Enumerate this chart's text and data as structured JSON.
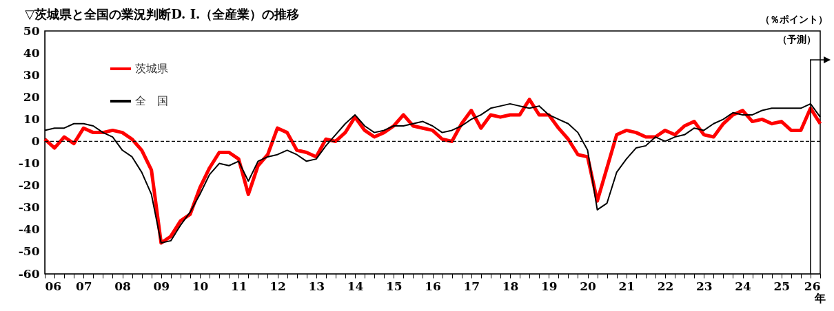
{
  "chart_data": {
    "type": "line",
    "title": "▽茨城県と全国の業況判断D. I.（全産業）の推移",
    "ylabel": "（％ポイント）",
    "x": [
      2006,
      2006.25,
      2006.5,
      2006.75,
      2007,
      2007.25,
      2007.5,
      2007.75,
      2008,
      2008.25,
      2008.5,
      2008.75,
      2009,
      2009.25,
      2009.5,
      2009.75,
      2010,
      2010.25,
      2010.5,
      2010.75,
      2011,
      2011.25,
      2011.5,
      2011.75,
      2012,
      2012.25,
      2012.5,
      2012.75,
      2013,
      2013.25,
      2013.5,
      2013.75,
      2014,
      2014.25,
      2014.5,
      2014.75,
      2015,
      2015.25,
      2015.5,
      2015.75,
      2016,
      2016.25,
      2016.5,
      2016.75,
      2017,
      2017.25,
      2017.5,
      2017.75,
      2018,
      2018.25,
      2018.5,
      2018.75,
      2019,
      2019.25,
      2019.5,
      2019.75,
      2020,
      2020.25,
      2020.5,
      2020.75,
      2021,
      2021.25,
      2021.5,
      2021.75,
      2022,
      2022.25,
      2022.5,
      2022.75,
      2023,
      2023.25,
      2023.5,
      2023.75,
      2024,
      2024.25,
      2024.5,
      2024.75,
      2025,
      2025.25,
      2025.5,
      2025.75,
      2026
    ],
    "series": [
      {
        "name": "茨城県",
        "color": "#ff0000",
        "values": [
          1,
          -3,
          2,
          -1,
          6,
          4,
          4,
          5,
          4,
          1,
          -4,
          -13,
          -46,
          -43,
          -36,
          -33,
          -21,
          -12,
          -5,
          -5,
          -8,
          -24,
          -11,
          -6,
          6,
          4,
          -4,
          -5,
          -7,
          1,
          0,
          4,
          11,
          5,
          2,
          4,
          7,
          12,
          7,
          6,
          5,
          1,
          0,
          8,
          14,
          6,
          12,
          11,
          12,
          12,
          19,
          12,
          12,
          6,
          1,
          -6,
          -7,
          -27,
          -12,
          3,
          5,
          4,
          2,
          2,
          5,
          3,
          7,
          9,
          3,
          2,
          8,
          12,
          14,
          9,
          10,
          8,
          9,
          5,
          5,
          15,
          8
        ]
      },
      {
        "name": "全　国",
        "color": "#000000",
        "values": [
          5,
          6,
          6,
          8,
          8,
          7,
          4,
          2,
          -4,
          -7,
          -14,
          -24,
          -46,
          -45,
          -38,
          -32,
          -24,
          -15,
          -10,
          -11,
          -9,
          -18,
          -9,
          -7,
          -6,
          -4,
          -6,
          -9,
          -8,
          -2,
          3,
          8,
          12,
          7,
          4,
          5,
          7,
          7,
          8,
          9,
          7,
          4,
          5,
          7,
          10,
          12,
          15,
          16,
          17,
          16,
          15,
          16,
          12,
          10,
          8,
          4,
          -4,
          -31,
          -28,
          -14,
          -8,
          -3,
          -2,
          2,
          0,
          2,
          3,
          6,
          5,
          8,
          10,
          13,
          12,
          12,
          14,
          15,
          15,
          15,
          15,
          17,
          11
        ]
      }
    ],
    "xlim": [
      2006,
      2026
    ],
    "xticks": [
      {
        "value": 2006,
        "label": "06"
      },
      {
        "value": 2006.25,
        "label": null
      },
      {
        "value": 2006.5,
        "label": null
      },
      {
        "value": 2006.75,
        "label": null
      },
      {
        "value": 2007,
        "label": "07"
      },
      {
        "value": 2007.25,
        "label": null
      },
      {
        "value": 2007.5,
        "label": null
      },
      {
        "value": 2007.75,
        "label": null
      },
      {
        "value": 2008,
        "label": "08"
      },
      {
        "value": 2008.25,
        "label": null
      },
      {
        "value": 2008.5,
        "label": null
      },
      {
        "value": 2008.75,
        "label": null
      },
      {
        "value": 2009,
        "label": "09"
      },
      {
        "value": 2009.25,
        "label": null
      },
      {
        "value": 2009.5,
        "label": null
      },
      {
        "value": 2009.75,
        "label": null
      },
      {
        "value": 2010,
        "label": "10"
      },
      {
        "value": 2010.25,
        "label": null
      },
      {
        "value": 2010.5,
        "label": null
      },
      {
        "value": 2010.75,
        "label": null
      },
      {
        "value": 2011,
        "label": "11"
      },
      {
        "value": 2011.25,
        "label": null
      },
      {
        "value": 2011.5,
        "label": null
      },
      {
        "value": 2011.75,
        "label": null
      },
      {
        "value": 2012,
        "label": "12"
      },
      {
        "value": 2012.25,
        "label": null
      },
      {
        "value": 2012.5,
        "label": null
      },
      {
        "value": 2012.75,
        "label": null
      },
      {
        "value": 2013,
        "label": "13"
      },
      {
        "value": 2013.25,
        "label": null
      },
      {
        "value": 2013.5,
        "label": null
      },
      {
        "value": 2013.75,
        "label": null
      },
      {
        "value": 2014,
        "label": "14"
      },
      {
        "value": 2014.25,
        "label": null
      },
      {
        "value": 2014.5,
        "label": null
      },
      {
        "value": 2014.75,
        "label": null
      },
      {
        "value": 2015,
        "label": "15"
      },
      {
        "value": 2015.25,
        "label": null
      },
      {
        "value": 2015.5,
        "label": null
      },
      {
        "value": 2015.75,
        "label": null
      },
      {
        "value": 2016,
        "label": "16"
      },
      {
        "value": 2016.25,
        "label": null
      },
      {
        "value": 2016.5,
        "label": null
      },
      {
        "value": 2016.75,
        "label": null
      },
      {
        "value": 2017,
        "label": "17"
      },
      {
        "value": 2017.25,
        "label": null
      },
      {
        "value": 2017.5,
        "label": null
      },
      {
        "value": 2017.75,
        "label": null
      },
      {
        "value": 2018,
        "label": "18"
      },
      {
        "value": 2018.25,
        "label": null
      },
      {
        "value": 2018.5,
        "label": null
      },
      {
        "value": 2018.75,
        "label": null
      },
      {
        "value": 2019,
        "label": "19"
      },
      {
        "value": 2019.25,
        "label": null
      },
      {
        "value": 2019.5,
        "label": null
      },
      {
        "value": 2019.75,
        "label": null
      },
      {
        "value": 2020,
        "label": "20"
      },
      {
        "value": 2020.25,
        "label": null
      },
      {
        "value": 2020.5,
        "label": null
      },
      {
        "value": 2020.75,
        "label": null
      },
      {
        "value": 2021,
        "label": "21"
      },
      {
        "value": 2021.25,
        "label": null
      },
      {
        "value": 2021.5,
        "label": null
      },
      {
        "value": 2021.75,
        "label": null
      },
      {
        "value": 2022,
        "label": "22"
      },
      {
        "value": 2022.25,
        "label": null
      },
      {
        "value": 2022.5,
        "label": null
      },
      {
        "value": 2022.75,
        "label": null
      },
      {
        "value": 2023,
        "label": "23"
      },
      {
        "value": 2023.25,
        "label": null
      },
      {
        "value": 2023.5,
        "label": null
      },
      {
        "value": 2023.75,
        "label": null
      },
      {
        "value": 2024,
        "label": "24"
      },
      {
        "value": 2024.25,
        "label": null
      },
      {
        "value": 2024.5,
        "label": null
      },
      {
        "value": 2024.75,
        "label": null
      },
      {
        "value": 2025,
        "label": "25"
      },
      {
        "value": 2025.25,
        "label": null
      },
      {
        "value": 2025.5,
        "label": null
      },
      {
        "value": 2025.75,
        "label": null
      },
      {
        "value": 2026,
        "label": "26"
      }
    ],
    "annotations": [
      "年"
    ],
    "ylim": [
      -60,
      50
    ],
    "yticks": [
      -60,
      -50,
      -40,
      -30,
      -20,
      -10,
      0,
      10,
      20,
      30,
      40,
      50
    ],
    "ref_lines": [
      {
        "axis": "y",
        "value": 0,
        "line_style": "dashed"
      },
      {
        "axis": "x",
        "value": 2025.75,
        "label": "（予測）",
        "line_style": "solid"
      }
    ],
    "legend": "top left",
    "grid": false,
    "line_style": "solid",
    "marker": "none"
  }
}
